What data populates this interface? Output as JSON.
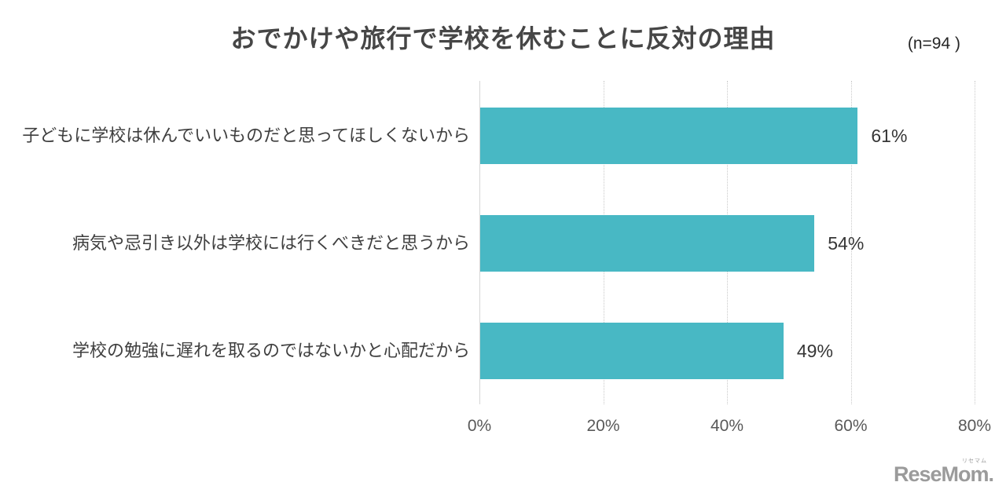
{
  "chart_data": {
    "type": "bar",
    "orientation": "horizontal",
    "title": "おでかけや旅行で学校を休むことに反対の理由",
    "sample_size_label": "(n=94 )",
    "categories": [
      "子どもに学校は休んでいいものだと思ってほしくないから",
      "病気や忌引き以外は学校には行くべきだと思うから",
      "学校の勉強に遅れを取るのではないかと心配だから"
    ],
    "values": [
      61,
      54,
      49
    ],
    "value_labels": [
      "61%",
      "54%",
      "49%"
    ],
    "x_ticks": [
      {
        "label": "0%",
        "value": 0
      },
      {
        "label": "20%",
        "value": 20
      },
      {
        "label": "40%",
        "value": 40
      },
      {
        "label": "60%",
        "value": 60
      },
      {
        "label": "80%",
        "value": 80
      }
    ],
    "xlim": [
      0,
      80
    ],
    "grid": "vertical-dotted",
    "legend": "none"
  },
  "footer": {
    "logo_wordmark": "ReseMom.",
    "logo_ruby": "リセマム"
  },
  "colors": {
    "bar": "#48B8C4",
    "title": "#464646",
    "category_label": "#3F3F3F",
    "value_label": "#363636",
    "tick_label": "#595959",
    "grid_line": "#C9C9C9",
    "axis_line": "#D6D6D6",
    "n_label": "#262626",
    "logo": "#9B9B9B",
    "background": "#FFFFFF"
  }
}
